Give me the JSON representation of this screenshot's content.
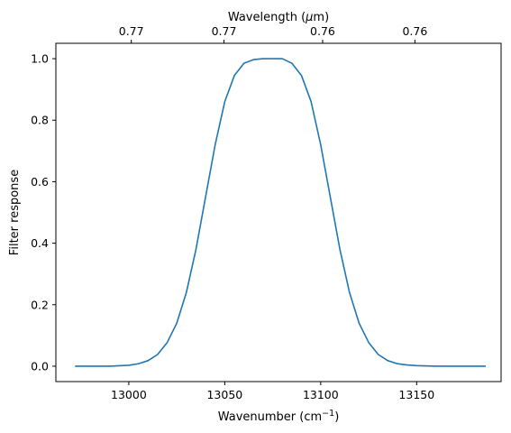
{
  "chart_data": {
    "type": "line",
    "xlabel": "Wavenumber (cm",
    "xlabel_sup": "−1",
    "xlabel_suffix": ")",
    "ylabel": "Filter response",
    "top_xlabel": "Wavelength (",
    "top_xlabel_mu": "μ",
    "top_xlabel_suffix": "m)",
    "xlim": [
      12962,
      13194
    ],
    "ylim": [
      -0.05,
      1.05
    ],
    "xticks": [
      13000,
      13050,
      13100,
      13150
    ],
    "xtick_labels": [
      "13000",
      "13050",
      "13100",
      "13150"
    ],
    "yticks": [
      0.0,
      0.2,
      0.4,
      0.6,
      0.8,
      1.0
    ],
    "ytick_labels": [
      "0.0",
      "0.2",
      "0.4",
      "0.6",
      "0.8",
      "1.0"
    ],
    "top_xtick_positions_wavenumber": [
      13001.3,
      13049.6,
      13101.0,
      13149.1
    ],
    "top_xtick_labels": [
      "0.77",
      "0.77",
      "0.76",
      "0.76"
    ],
    "grid": false,
    "series": [
      {
        "color": "#1f77b4",
        "x": [
          12972,
          12990,
          13000,
          13005,
          13010,
          13015,
          13020,
          13025,
          13030,
          13035,
          13040,
          13045,
          13050,
          13055,
          13060,
          13065,
          13070,
          13075,
          13078,
          13080,
          13085,
          13090,
          13095,
          13100,
          13105,
          13110,
          13115,
          13120,
          13125,
          13130,
          13135,
          13140,
          13145,
          13150,
          13160,
          13170,
          13186
        ],
        "y": [
          0.0,
          0.0,
          0.003,
          0.008,
          0.018,
          0.038,
          0.077,
          0.14,
          0.24,
          0.38,
          0.55,
          0.72,
          0.86,
          0.945,
          0.985,
          0.997,
          1.0,
          1.0,
          1.0,
          1.0,
          0.985,
          0.945,
          0.86,
          0.72,
          0.55,
          0.38,
          0.24,
          0.14,
          0.077,
          0.038,
          0.018,
          0.008,
          0.004,
          0.002,
          0.0,
          0.0,
          0.0
        ]
      }
    ]
  }
}
